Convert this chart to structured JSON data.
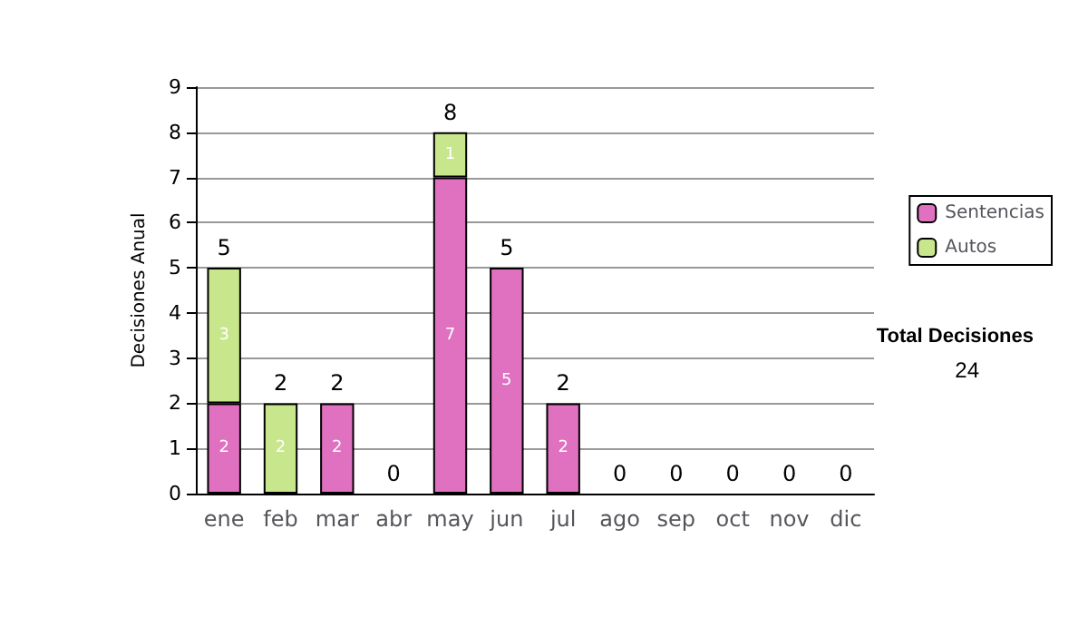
{
  "chart_data": {
    "type": "bar",
    "ylabel": "Decisiones Anual",
    "categories": [
      "ene",
      "feb",
      "mar",
      "abr",
      "may",
      "jun",
      "jul",
      "ago",
      "sep",
      "oct",
      "nov",
      "dic"
    ],
    "series": [
      {
        "name": "Sentencias",
        "color": "#e070c0",
        "values": [
          2,
          0,
          2,
          0,
          7,
          5,
          2,
          0,
          0,
          0,
          0,
          0
        ],
        "value_labels": [
          "2",
          null,
          "2",
          null,
          "7",
          "5",
          "2",
          null,
          null,
          null,
          null,
          null
        ]
      },
      {
        "name": "Autos",
        "color": "#c8e68c",
        "values": [
          3,
          2,
          0,
          0,
          1,
          0,
          0,
          0,
          0,
          0,
          0,
          0
        ],
        "value_labels": [
          "3",
          "2",
          null,
          null,
          "1",
          null,
          null,
          null,
          null,
          null,
          null,
          null
        ]
      }
    ],
    "stacked": true,
    "totals": [
      "5",
      "2",
      "2",
      "0",
      "8",
      "5",
      "2",
      "0",
      "0",
      "0",
      "0",
      "0"
    ],
    "ylim": [
      0,
      9
    ],
    "yticks": [
      0,
      1,
      2,
      3,
      4,
      5,
      6,
      7,
      8,
      9
    ],
    "grid": "y",
    "legend": "right",
    "annotations": [
      "Total Decisiones",
      "24"
    ]
  }
}
